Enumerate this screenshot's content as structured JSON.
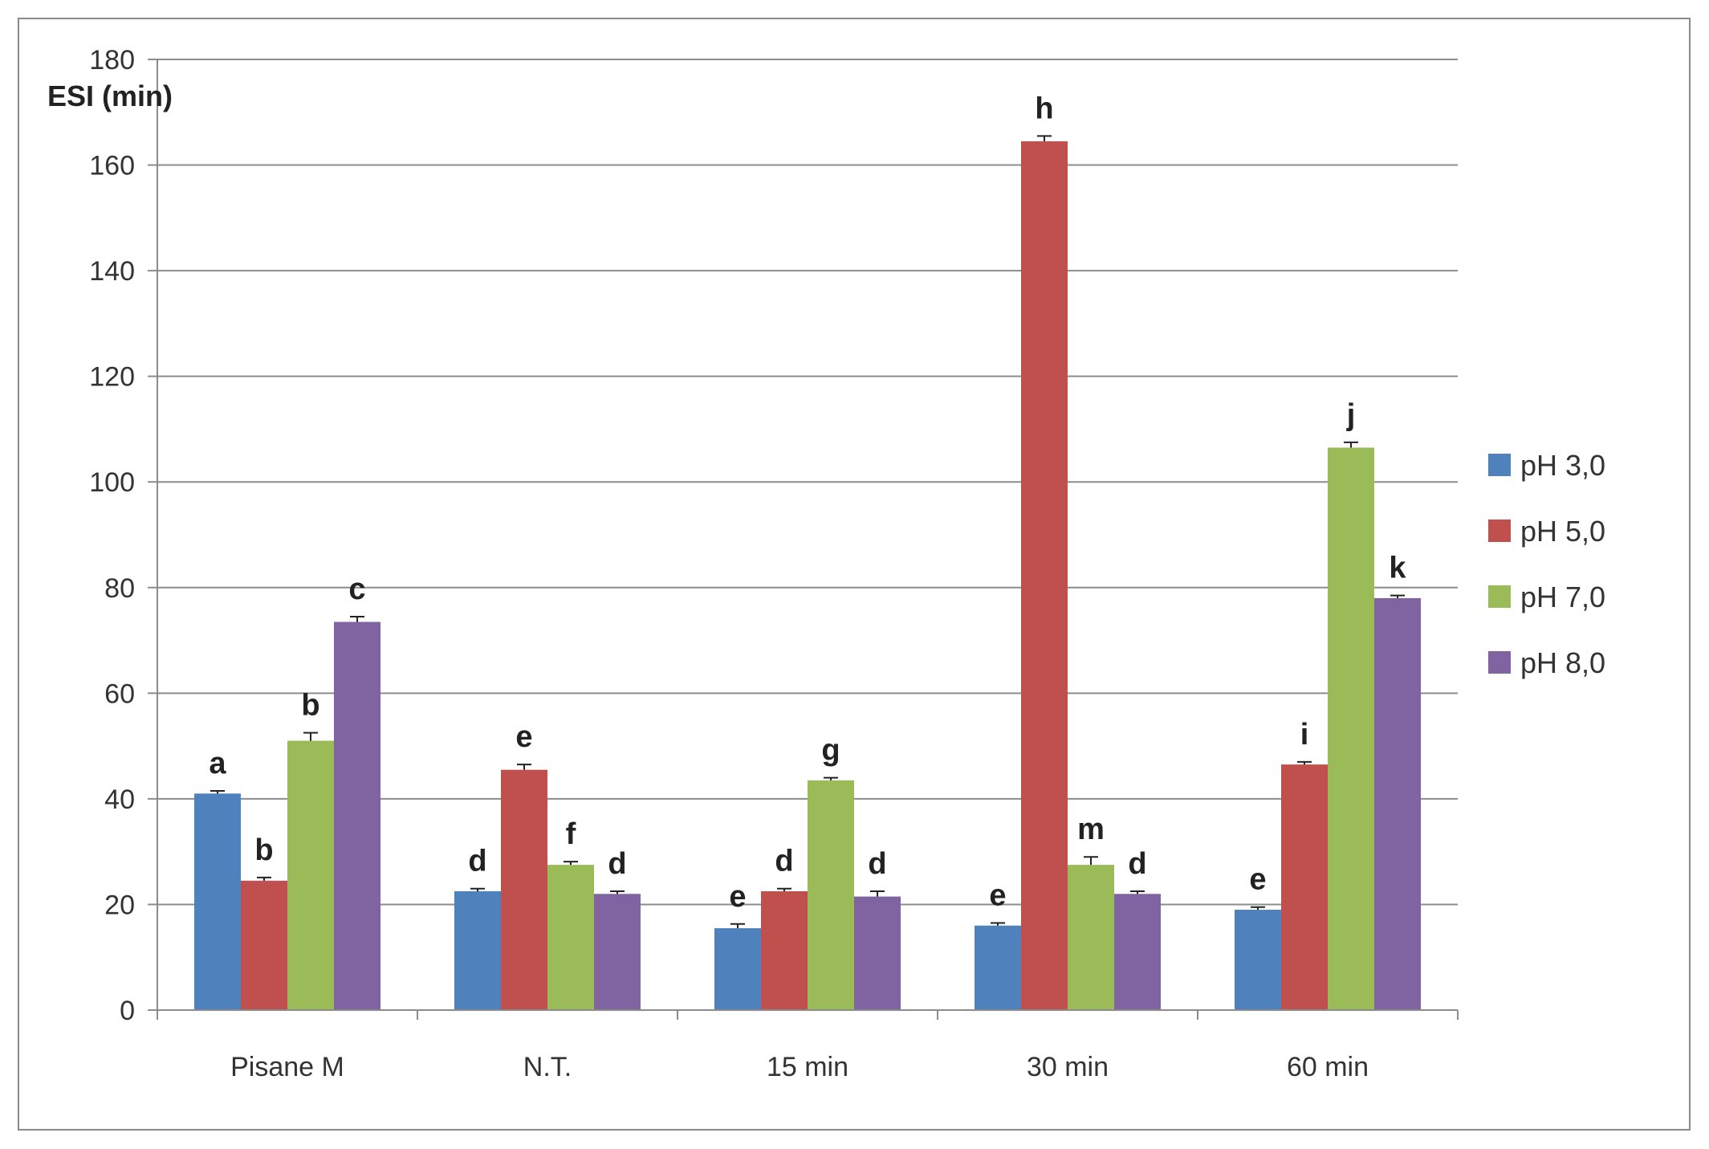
{
  "chart_data": {
    "type": "bar",
    "title": "",
    "ylabel": "ESI (min)",
    "xlabel": "",
    "ylim": [
      0,
      180
    ],
    "yticks": [
      0,
      20,
      40,
      60,
      80,
      100,
      120,
      140,
      160,
      180
    ],
    "grid": true,
    "legend_position": "right",
    "categories": [
      "Pisane M",
      "N.T.",
      "15 min",
      "30 min",
      "60 min"
    ],
    "series": [
      {
        "name": "pH 3,0",
        "color": "#4f81bd",
        "values": [
          41,
          22.5,
          15.5,
          16,
          19
        ],
        "errors": [
          0.5,
          0.5,
          0.8,
          0.5,
          0.5
        ],
        "labels": [
          "a",
          "d",
          "e",
          "e",
          "e"
        ]
      },
      {
        "name": "pH 5,0",
        "color": "#c0504d",
        "values": [
          24.5,
          45.5,
          22.5,
          164.5,
          46.5
        ],
        "errors": [
          0.6,
          1,
          0.5,
          1,
          0.5
        ],
        "labels": [
          "b",
          "e",
          "d",
          "h",
          "i"
        ]
      },
      {
        "name": "pH 7,0",
        "color": "#9bbb59",
        "values": [
          51,
          27.5,
          43.5,
          27.5,
          106.5
        ],
        "errors": [
          1.5,
          0.6,
          0.5,
          1.5,
          1
        ],
        "labels": [
          "b",
          "f",
          "g",
          "m",
          "j"
        ]
      },
      {
        "name": "pH 8,0",
        "color": "#8064a2",
        "values": [
          73.5,
          22,
          21.5,
          22,
          78
        ],
        "errors": [
          1,
          0.5,
          1,
          0.5,
          0.5
        ],
        "labels": [
          "c",
          "d",
          "d",
          "d",
          "k"
        ]
      }
    ]
  }
}
